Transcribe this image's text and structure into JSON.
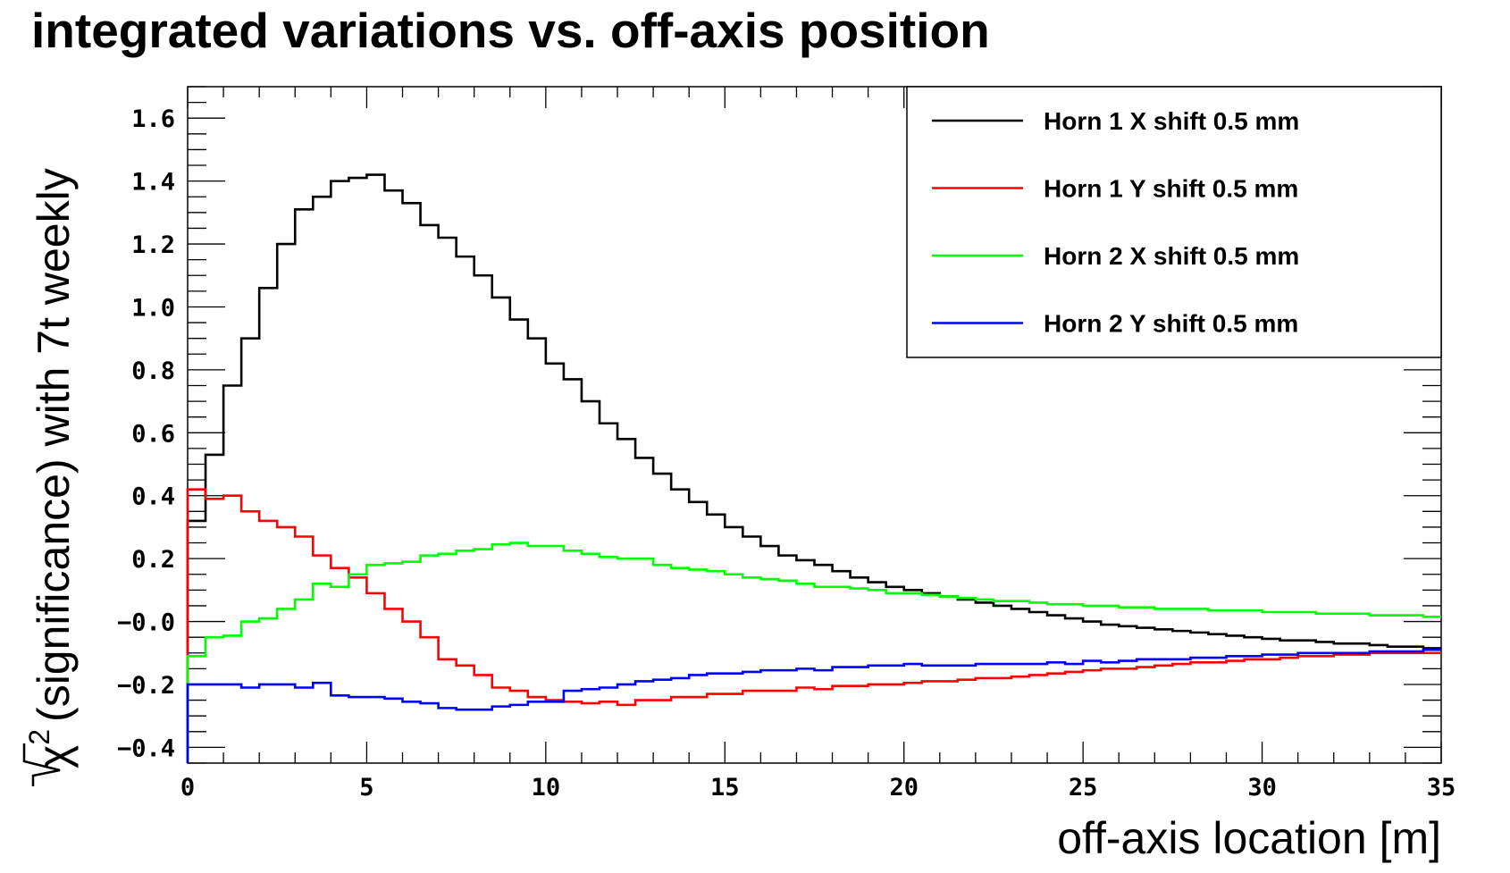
{
  "chart_data": {
    "type": "line",
    "title": "integrated variations vs. off-axis position",
    "xlabel": "off-axis location [m]",
    "ylabel": "(significance) with 7t weekly",
    "ylabel_math": "χ",
    "ylabel_sup": "2",
    "xlim": [
      0,
      35
    ],
    "ylim": [
      -0.45,
      1.7
    ],
    "x_ticks": [
      0,
      5,
      10,
      15,
      20,
      25,
      30,
      35
    ],
    "x_tick_labels": [
      "0",
      "5",
      "10",
      "15",
      "20",
      "25",
      "30",
      "35"
    ],
    "y_ticks": [
      -0.4,
      -0.2,
      0.0,
      0.2,
      0.4,
      0.6,
      0.8,
      1.0,
      1.2,
      1.4,
      1.6
    ],
    "y_tick_labels": [
      "−0.4",
      "−0.2",
      "−0.0",
      "0.2",
      "0.4",
      "0.6",
      "0.8",
      "1.0",
      "1.2",
      "1.4",
      "1.6"
    ],
    "grid": false,
    "legend_position": "top-right",
    "bin_width": 0.5,
    "series": [
      {
        "name": "Horn 1 X shift 0.5 mm",
        "color": "#000000",
        "values": [
          0.32,
          0.53,
          0.75,
          0.9,
          1.06,
          1.2,
          1.31,
          1.35,
          1.4,
          1.41,
          1.42,
          1.37,
          1.33,
          1.26,
          1.22,
          1.16,
          1.1,
          1.03,
          0.96,
          0.9,
          0.82,
          0.77,
          0.7,
          0.63,
          0.58,
          0.52,
          0.47,
          0.42,
          0.38,
          0.34,
          0.3,
          0.27,
          0.24,
          0.21,
          0.195,
          0.18,
          0.16,
          0.14,
          0.125,
          0.11,
          0.1,
          0.09,
          0.08,
          0.07,
          0.06,
          0.05,
          0.04,
          0.03,
          0.02,
          0.01,
          0.0,
          -0.01,
          -0.015,
          -0.02,
          -0.025,
          -0.03,
          -0.035,
          -0.04,
          -0.045,
          -0.05,
          -0.055,
          -0.06,
          -0.06,
          -0.065,
          -0.07,
          -0.07,
          -0.075,
          -0.08,
          -0.08,
          -0.085
        ]
      },
      {
        "name": "Horn 1 Y shift 0.5 mm",
        "color": "#ff0000",
        "values": [
          0.42,
          0.39,
          0.4,
          0.35,
          0.32,
          0.3,
          0.27,
          0.21,
          0.17,
          0.14,
          0.09,
          0.04,
          0.0,
          -0.05,
          -0.12,
          -0.14,
          -0.17,
          -0.21,
          -0.22,
          -0.24,
          -0.25,
          -0.255,
          -0.26,
          -0.255,
          -0.265,
          -0.25,
          -0.25,
          -0.24,
          -0.24,
          -0.23,
          -0.23,
          -0.22,
          -0.22,
          -0.22,
          -0.21,
          -0.215,
          -0.205,
          -0.205,
          -0.2,
          -0.2,
          -0.195,
          -0.19,
          -0.19,
          -0.185,
          -0.18,
          -0.18,
          -0.175,
          -0.17,
          -0.165,
          -0.16,
          -0.155,
          -0.15,
          -0.15,
          -0.145,
          -0.14,
          -0.135,
          -0.13,
          -0.13,
          -0.125,
          -0.12,
          -0.12,
          -0.115,
          -0.11,
          -0.11,
          -0.105,
          -0.105,
          -0.1,
          -0.1,
          -0.1,
          -0.1
        ]
      },
      {
        "name": "Horn 2 X shift 0.5 mm",
        "color": "#00ff00",
        "values": [
          -0.11,
          -0.05,
          -0.045,
          0.0,
          0.01,
          0.04,
          0.07,
          0.12,
          0.11,
          0.15,
          0.18,
          0.185,
          0.19,
          0.21,
          0.215,
          0.225,
          0.23,
          0.245,
          0.25,
          0.24,
          0.24,
          0.225,
          0.215,
          0.205,
          0.2,
          0.2,
          0.18,
          0.17,
          0.165,
          0.16,
          0.15,
          0.14,
          0.135,
          0.13,
          0.12,
          0.11,
          0.11,
          0.105,
          0.1,
          0.09,
          0.09,
          0.085,
          0.08,
          0.075,
          0.07,
          0.065,
          0.065,
          0.06,
          0.055,
          0.055,
          0.05,
          0.05,
          0.045,
          0.045,
          0.04,
          0.04,
          0.04,
          0.035,
          0.035,
          0.035,
          0.03,
          0.03,
          0.03,
          0.025,
          0.025,
          0.025,
          0.02,
          0.02,
          0.02,
          0.015
        ]
      },
      {
        "name": "Horn 2 Y shift 0.5 mm",
        "color": "#0000ff",
        "values": [
          -0.2,
          -0.2,
          -0.2,
          -0.21,
          -0.2,
          -0.2,
          -0.21,
          -0.195,
          -0.235,
          -0.24,
          -0.24,
          -0.245,
          -0.255,
          -0.26,
          -0.275,
          -0.28,
          -0.28,
          -0.27,
          -0.265,
          -0.255,
          -0.255,
          -0.22,
          -0.215,
          -0.21,
          -0.2,
          -0.19,
          -0.185,
          -0.18,
          -0.17,
          -0.165,
          -0.165,
          -0.16,
          -0.155,
          -0.155,
          -0.15,
          -0.155,
          -0.145,
          -0.145,
          -0.14,
          -0.14,
          -0.135,
          -0.14,
          -0.14,
          -0.14,
          -0.135,
          -0.135,
          -0.135,
          -0.135,
          -0.13,
          -0.135,
          -0.125,
          -0.13,
          -0.125,
          -0.12,
          -0.12,
          -0.12,
          -0.115,
          -0.115,
          -0.11,
          -0.11,
          -0.105,
          -0.105,
          -0.1,
          -0.1,
          -0.1,
          -0.1,
          -0.095,
          -0.095,
          -0.095,
          -0.09
        ]
      }
    ]
  }
}
